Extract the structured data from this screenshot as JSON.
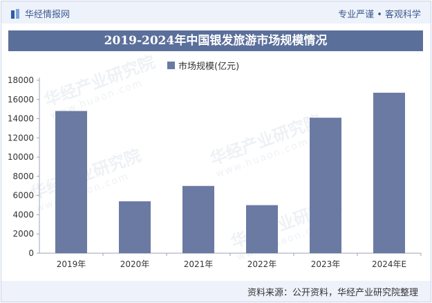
{
  "header": {
    "brand": "华经情报网",
    "tagline": "专业严谨 • 客观科学"
  },
  "watermark": {
    "text": "华经产业研究院",
    "url": "www.huaon.com"
  },
  "footer": {
    "source": "资料来源：公开资料，华经产业研究院整理"
  },
  "colors": {
    "bar": "#6b7aa3",
    "title_bg": "#5b6f9b",
    "header_bg": "#eef2fb"
  },
  "chart_data": {
    "type": "bar",
    "title": "2019-2024年中国银发旅游市场规模情况",
    "legend": [
      "市场规模(亿元)"
    ],
    "categories": [
      "2019年",
      "2020年",
      "2021年",
      "2022年",
      "2023年",
      "2024年E"
    ],
    "series": [
      {
        "name": "市场规模(亿元)",
        "values": [
          14800,
          5400,
          7000,
          5000,
          14100,
          16700
        ]
      }
    ],
    "yticks": [
      0,
      2000,
      4000,
      6000,
      8000,
      10000,
      12000,
      14000,
      16000,
      18000
    ],
    "ylim": [
      0,
      18000
    ],
    "xlabel": "",
    "ylabel": "",
    "grid": false
  }
}
